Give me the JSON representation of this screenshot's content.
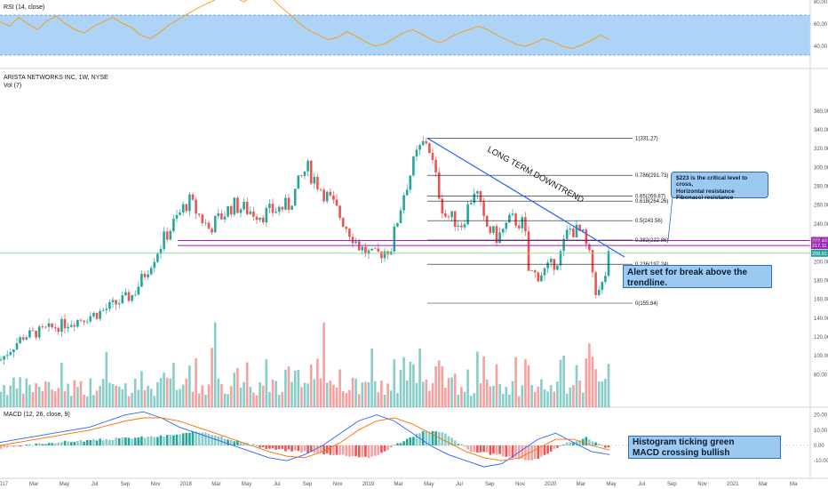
{
  "rsi_pane": {
    "label": "RSI (14, close)",
    "ticks": [
      "80.00",
      "60.00",
      "40.00"
    ]
  },
  "price_pane": {
    "title": "ARISTA NETWORKS INC, 1W, NYSE",
    "vol_label": "Vol (7)",
    "ticks": [
      "360.00",
      "340.00",
      "320.00",
      "300.00",
      "280.00",
      "260.00",
      "240.00",
      "220.00",
      "200.00",
      "180.00",
      "160.00",
      "140.00",
      "120.00",
      "100.00",
      "80.00"
    ],
    "price_badges": [
      {
        "text": "222.43",
        "color": "#9c27b0"
      },
      {
        "text": "217.11",
        "color": "#9c27b0"
      },
      {
        "text": "208.91",
        "color": "#26a69a"
      }
    ],
    "trendline_label": "LONG TERM DOWNTREND",
    "fib_levels": [
      {
        "label": "1(331.27)",
        "price": 331.27
      },
      {
        "label": "0.786(291.73)",
        "price": 291.73
      },
      {
        "label": "0.65(269.87)",
        "price": 269.87
      },
      {
        "label": "0.618(264.26)",
        "price": 264.26
      },
      {
        "label": "0.5(243.56)",
        "price": 243.56
      },
      {
        "label": "0.382(222.86)",
        "price": 222.86
      },
      {
        "label": "0.236(197.24)",
        "price": 197.24
      },
      {
        "label": "0(155.84)",
        "price": 155.84
      }
    ],
    "horizontal_lines": [
      222.43,
      217.11
    ],
    "callout_text_1": "$223 is the critical level to cross,",
    "callout_text_2": "Horizontal resistance",
    "callout_text_3": "Fibonacci resistance",
    "alert_text": "Alert set for break above the trendline."
  },
  "macd_pane": {
    "label": "MACD (12, 26, close, 9)",
    "ticks": [
      "20.00",
      "10.00",
      "0.00",
      "-10.00"
    ],
    "note_line_1": "Histogram ticking green",
    "note_line_2": "MACD crossing bullish"
  },
  "time_axis": [
    "017",
    "Mar",
    "May",
    "Jul",
    "Sep",
    "Nov",
    "2018",
    "Mar",
    "May",
    "Jul",
    "Sep",
    "Nov",
    "2019",
    "Mar",
    "May",
    "Jul",
    "Sep",
    "Nov",
    "2020",
    "Mar",
    "May",
    "Jul",
    "Sep",
    "Nov",
    "2021",
    "Mar",
    "Ma"
  ],
  "colors": {
    "up": "#26a69a",
    "down": "#ef5350",
    "rsi_band": "#6ab0f0",
    "rsi_line": "#ff9800",
    "fib": "#131722",
    "trendline": "#2962ff",
    "resistance": "#9c27b0",
    "support_line": "#4caf50",
    "macd_line": "#2962ff",
    "signal_line": "#ff6d00"
  },
  "chart_data": {
    "type": "candlestick",
    "title": "ARISTA NETWORKS INC, 1W, NYSE",
    "ylim": [
      60,
      370
    ],
    "key_points": [
      {
        "x": "2017-01",
        "close": 95
      },
      {
        "x": "2017-06",
        "close": 145
      },
      {
        "x": "2017-10",
        "close": 190
      },
      {
        "x": "2018-01",
        "close": 270
      },
      {
        "x": "2018-03",
        "close": 255
      },
      {
        "x": "2018-07",
        "close": 250
      },
      {
        "x": "2018-09",
        "close": 300
      },
      {
        "x": "2018-12",
        "close": 205
      },
      {
        "x": "2019-04",
        "close": 331
      },
      {
        "x": "2019-06",
        "close": 245
      },
      {
        "x": "2019-07",
        "close": 280
      },
      {
        "x": "2019-08",
        "close": 225
      },
      {
        "x": "2019-10",
        "close": 245
      },
      {
        "x": "2019-11",
        "close": 185
      },
      {
        "x": "2020-01",
        "close": 200
      },
      {
        "x": "2020-02",
        "close": 240
      },
      {
        "x": "2020-03",
        "close": 160
      },
      {
        "x": "2020-04",
        "close": 209
      }
    ]
  }
}
